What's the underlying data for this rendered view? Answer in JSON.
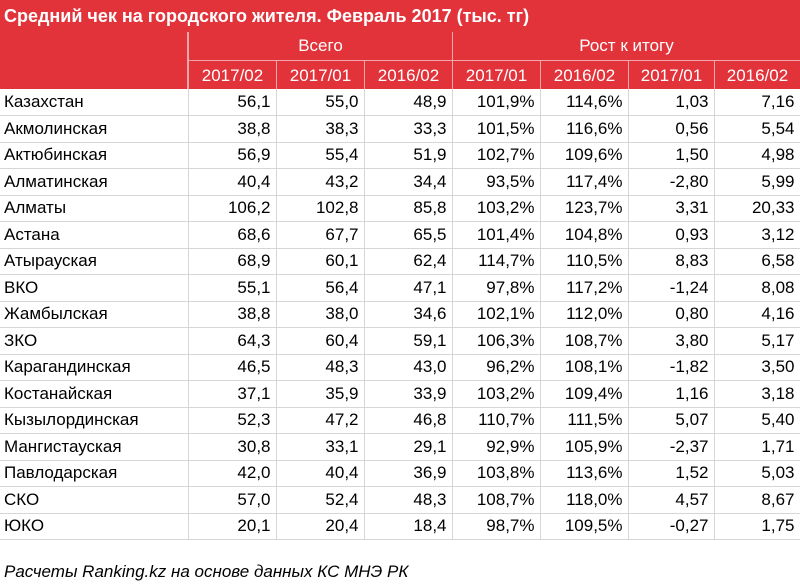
{
  "title": "Средний чек на городского жителя. Февраль 2017 (тыс. тг)",
  "groups": {
    "total": "Всего",
    "growth": "Рост к итогу"
  },
  "columns": [
    "2017/02",
    "2017/01",
    "2016/02",
    "2017/01",
    "2016/02",
    "2017/01",
    "2016/02"
  ],
  "rows": [
    {
      "name": "Казахстан",
      "v": [
        "56,1",
        "55,0",
        "48,9",
        "101,9%",
        "114,6%",
        "1,03",
        "7,16"
      ]
    },
    {
      "name": "Акмолинская",
      "v": [
        "38,8",
        "38,3",
        "33,3",
        "101,5%",
        "116,6%",
        "0,56",
        "5,54"
      ]
    },
    {
      "name": "Актюбинская",
      "v": [
        "56,9",
        "55,4",
        "51,9",
        "102,7%",
        "109,6%",
        "1,50",
        "4,98"
      ]
    },
    {
      "name": "Алматинская",
      "v": [
        "40,4",
        "43,2",
        "34,4",
        "93,5%",
        "117,4%",
        "-2,80",
        "5,99"
      ]
    },
    {
      "name": "Алматы",
      "v": [
        "106,2",
        "102,8",
        "85,8",
        "103,2%",
        "123,7%",
        "3,31",
        "20,33"
      ]
    },
    {
      "name": "Астана",
      "v": [
        "68,6",
        "67,7",
        "65,5",
        "101,4%",
        "104,8%",
        "0,93",
        "3,12"
      ]
    },
    {
      "name": "Атырауская",
      "v": [
        "68,9",
        "60,1",
        "62,4",
        "114,7%",
        "110,5%",
        "8,83",
        "6,58"
      ]
    },
    {
      "name": "ВКО",
      "v": [
        "55,1",
        "56,4",
        "47,1",
        "97,8%",
        "117,2%",
        "-1,24",
        "8,08"
      ]
    },
    {
      "name": "Жамбылская",
      "v": [
        "38,8",
        "38,0",
        "34,6",
        "102,1%",
        "112,0%",
        "0,80",
        "4,16"
      ]
    },
    {
      "name": "ЗКО",
      "v": [
        "64,3",
        "60,4",
        "59,1",
        "106,3%",
        "108,7%",
        "3,80",
        "5,17"
      ]
    },
    {
      "name": "Карагандинская",
      "v": [
        "46,5",
        "48,3",
        "43,0",
        "96,2%",
        "108,1%",
        "-1,82",
        "3,50"
      ]
    },
    {
      "name": "Костанайская",
      "v": [
        "37,1",
        "35,9",
        "33,9",
        "103,2%",
        "109,4%",
        "1,16",
        "3,18"
      ]
    },
    {
      "name": "Кызылординская",
      "v": [
        "52,3",
        "47,2",
        "46,8",
        "110,7%",
        "111,5%",
        "5,07",
        "5,40"
      ]
    },
    {
      "name": "Мангистауская",
      "v": [
        "30,8",
        "33,1",
        "29,1",
        "92,9%",
        "105,9%",
        "-2,37",
        "1,71"
      ]
    },
    {
      "name": "Павлодарская",
      "v": [
        "42,0",
        "40,4",
        "36,9",
        "103,8%",
        "113,6%",
        "1,52",
        "5,03"
      ]
    },
    {
      "name": "СКО",
      "v": [
        "57,0",
        "52,4",
        "48,3",
        "108,7%",
        "118,0%",
        "4,57",
        "8,67"
      ]
    },
    {
      "name": "ЮКО",
      "v": [
        "20,1",
        "20,4",
        "18,4",
        "98,7%",
        "109,5%",
        "-0,27",
        "1,75"
      ]
    }
  ],
  "footer": "Расчеты Ranking.kz на основе данных КС МНЭ РК",
  "colors": {
    "header": "#e2333b",
    "header_text": "#ffffff",
    "grid": "#d6d6d6"
  }
}
